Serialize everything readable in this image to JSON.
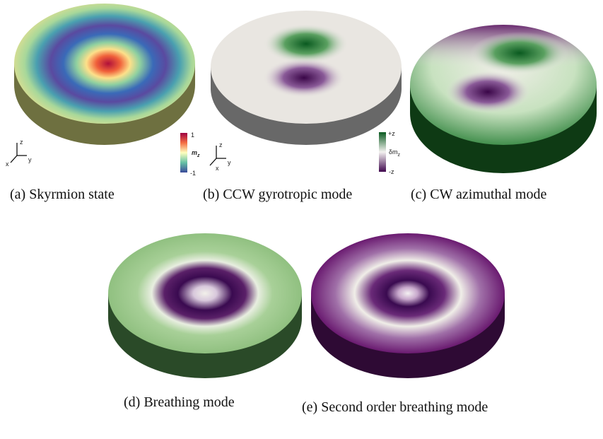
{
  "panels": [
    {
      "caption": "(a) Skyrmion state",
      "colorbar": {
        "max": "1",
        "label": "m",
        "label_sub": "z",
        "min": "-1"
      },
      "axes": {
        "z": "z",
        "x": "x",
        "y": "y"
      }
    },
    {
      "caption": "(b) CCW gyrotropic mode",
      "colorbar": {
        "max": "+z",
        "label": "δm",
        "label_sub": "z",
        "min": "-z"
      },
      "axes": {
        "z": "z",
        "x": "x",
        "y": "y"
      }
    },
    {
      "caption": "(c) CW azimuthal mode"
    },
    {
      "caption": "(d) Breathing mode"
    },
    {
      "caption": "(e) Second order breathing mode"
    }
  ]
}
